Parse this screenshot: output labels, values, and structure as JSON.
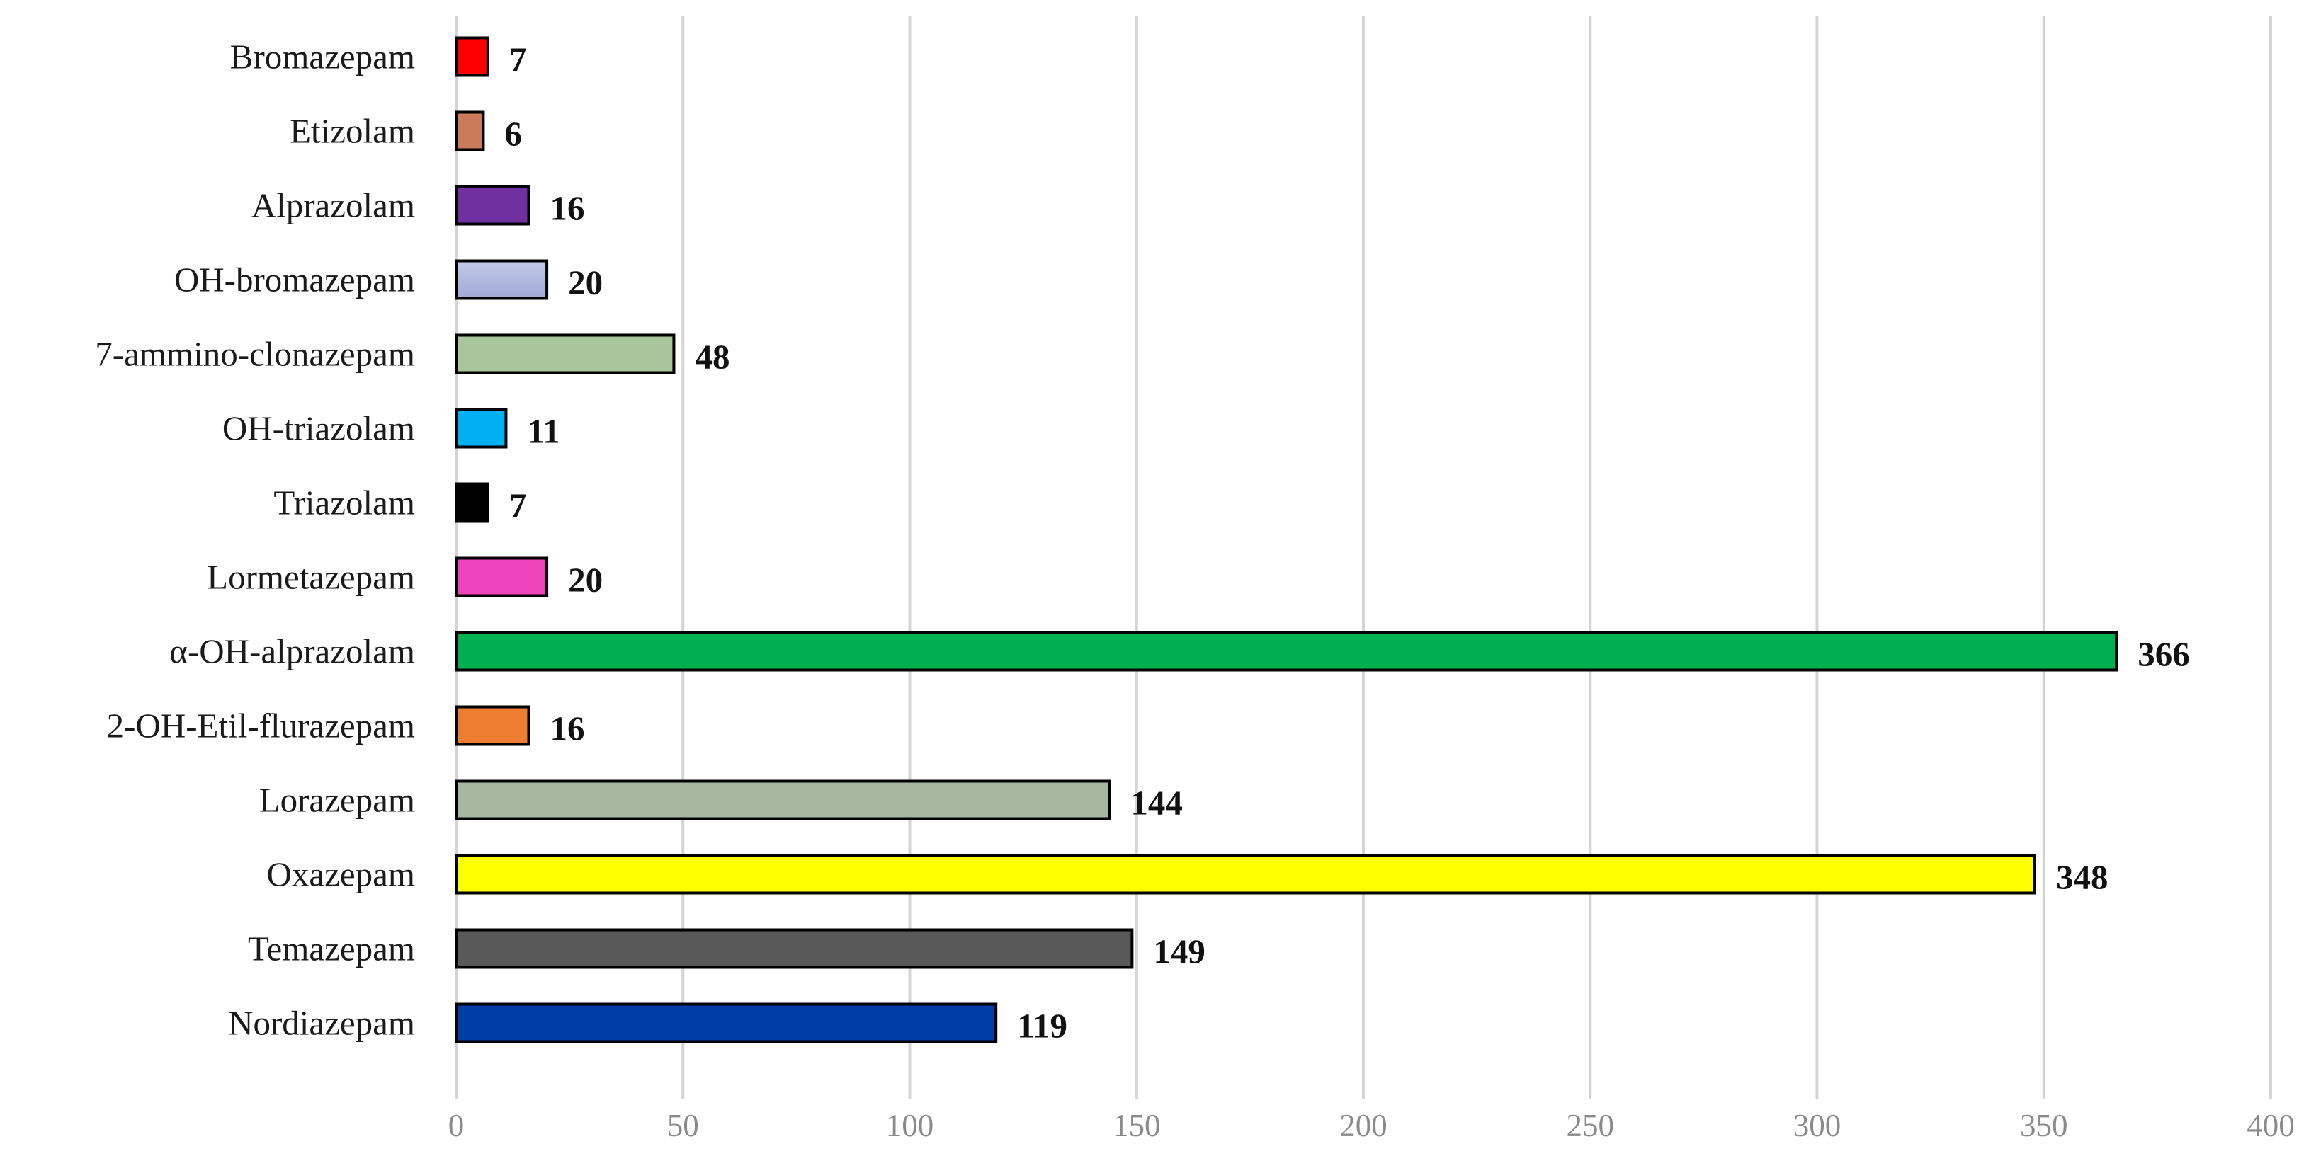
{
  "chart_data": {
    "type": "bar",
    "orientation": "horizontal",
    "title": "",
    "xlabel": "",
    "ylabel": "",
    "xlim": [
      0,
      400
    ],
    "x_ticks": [
      0,
      50,
      100,
      150,
      200,
      250,
      300,
      350,
      400
    ],
    "grid": "vertical",
    "legend": "none",
    "data_labels": true,
    "bars": [
      {
        "category": "Bromazepam",
        "value": 7,
        "color": "#ff0000"
      },
      {
        "category": "Etizolam",
        "value": 6,
        "color": "#c97b5a"
      },
      {
        "category": "Alprazolam",
        "value": 16,
        "color": "#7030a0"
      },
      {
        "category": "OH-bromazepam",
        "value": 20,
        "color": "#a0aad6"
      },
      {
        "category": "7-ammino-clonazepam",
        "value": 48,
        "color": "#a9c59b"
      },
      {
        "category": "OH-triazolam",
        "value": 11,
        "color": "#00b0f0"
      },
      {
        "category": "Triazolam",
        "value": 7,
        "color": "#000000"
      },
      {
        "category": "Lormetazepam",
        "value": 20,
        "color": "#ee44bb"
      },
      {
        "category": "α-OH-alprazolam",
        "value": 366,
        "color": "#00b050"
      },
      {
        "category": "2-OH-Etil-flurazepam",
        "value": 16,
        "color": "#ed7d31"
      },
      {
        "category": "Lorazepam",
        "value": 144,
        "color": "#a8b8a0"
      },
      {
        "category": "Oxazepam",
        "value": 348,
        "color": "#ffff00"
      },
      {
        "category": "Temazepam",
        "value": 149,
        "color": "#595959"
      },
      {
        "category": "Nordiazepam",
        "value": 119,
        "color": "#003da5"
      }
    ]
  }
}
